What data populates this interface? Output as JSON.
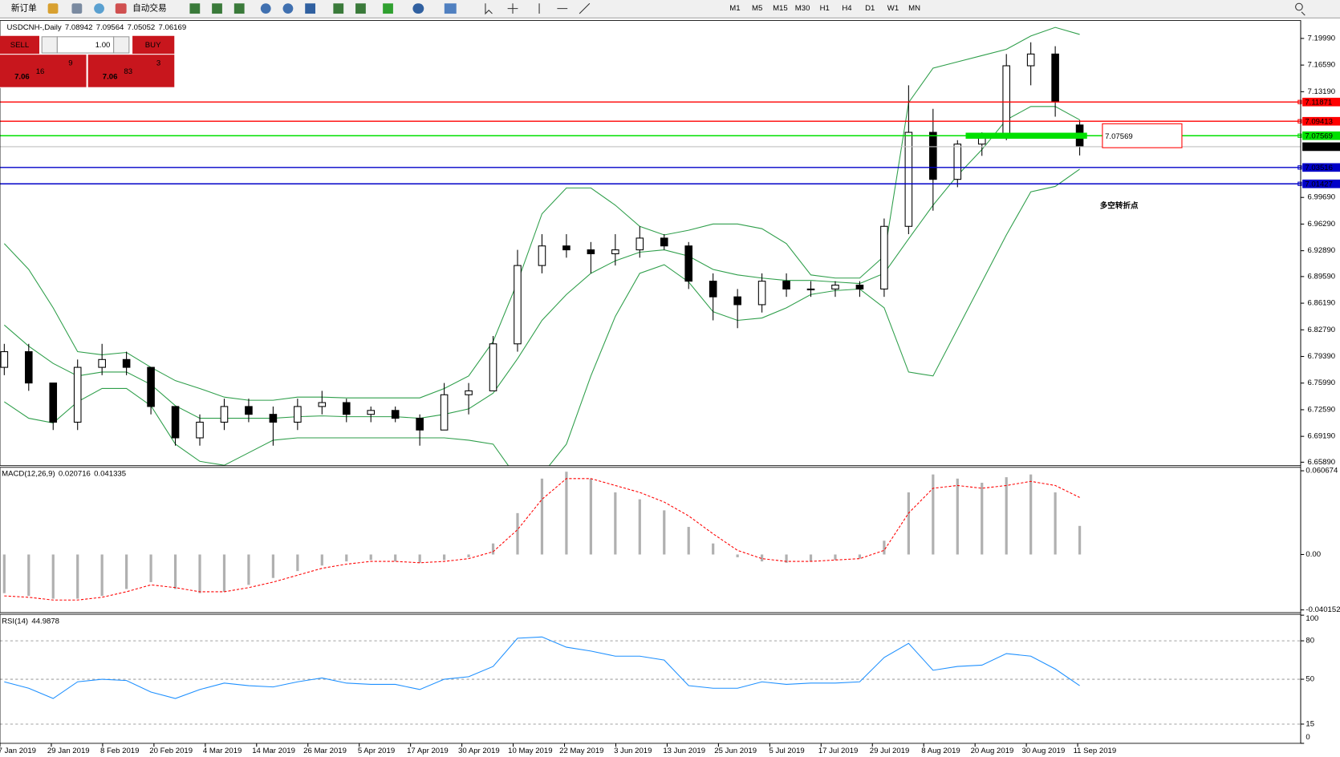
{
  "toolbar": {
    "new_order": "新订单",
    "auto_trading": "自动交易",
    "timeframes": [
      "M1",
      "M5",
      "M15",
      "M30",
      "H1",
      "H4",
      "D1",
      "W1",
      "MN"
    ]
  },
  "trade_panel": {
    "sell": "SELL",
    "buy": "BUY",
    "lots": "1.00",
    "sell_price": {
      "big": "7.06",
      "pips": "16",
      "point": "9"
    },
    "buy_price": {
      "big": "7.06",
      "pips": "83",
      "point": "3"
    }
  },
  "time_axis": [
    "7 Jan 2019",
    "29 Jan 2019",
    "8 Feb 2019",
    "20 Feb 2019",
    "4 Mar 2019",
    "14 Mar 2019",
    "26 Mar 2019",
    "5 Apr 2019",
    "17 Apr 2019",
    "30 Apr 2019",
    "10 May 2019",
    "22 May 2019",
    "3 Jun 2019",
    "13 Jun 2019",
    "25 Jun 2019",
    "5 Jul 2019",
    "17 Jul 2019",
    "29 Jul 2019",
    "8 Aug 2019",
    "20 Aug 2019",
    "30 Aug 2019",
    "11 Sep 2019"
  ],
  "chart_data": [
    {
      "type": "candlestick",
      "title": "USDCNH-,Daily",
      "open": [
        6.78,
        6.8,
        6.76,
        6.71,
        6.78,
        6.79,
        6.78,
        6.73,
        6.69,
        6.71,
        6.73,
        6.72,
        6.71,
        6.73,
        6.735,
        6.72,
        6.725,
        6.715,
        6.7,
        6.745,
        6.75,
        6.81,
        6.91,
        6.935,
        6.93,
        6.925,
        6.93,
        6.945,
        6.935,
        6.89,
        6.87,
        6.86,
        6.89,
        6.88,
        6.88,
        6.885,
        6.88,
        6.96,
        7.08,
        7.02,
        7.065,
        7.075,
        7.165,
        7.18,
        7.08942
      ],
      "high": [
        6.81,
        6.81,
        6.76,
        6.79,
        6.81,
        6.8,
        6.78,
        6.73,
        6.72,
        6.74,
        6.74,
        6.73,
        6.74,
        6.75,
        6.74,
        6.73,
        6.73,
        6.72,
        6.76,
        6.76,
        6.82,
        6.93,
        6.95,
        6.95,
        6.94,
        6.95,
        6.96,
        6.95,
        6.94,
        6.9,
        6.88,
        6.9,
        6.9,
        6.89,
        6.89,
        6.89,
        6.97,
        7.14,
        7.11,
        7.07,
        7.08,
        7.18,
        7.195,
        7.19,
        7.09564
      ],
      "low": [
        6.77,
        6.75,
        6.7,
        6.7,
        6.77,
        6.77,
        6.72,
        6.68,
        6.68,
        6.7,
        6.71,
        6.68,
        6.7,
        6.72,
        6.71,
        6.71,
        6.71,
        6.68,
        6.7,
        6.72,
        6.75,
        6.8,
        6.9,
        6.92,
        6.9,
        6.91,
        6.92,
        6.93,
        6.88,
        6.84,
        6.83,
        6.85,
        6.87,
        6.87,
        6.87,
        6.87,
        6.87,
        6.95,
        6.98,
        7.01,
        7.05,
        7.07,
        7.14,
        7.1,
        7.05052
      ],
      "close": [
        6.8,
        6.76,
        6.71,
        6.78,
        6.79,
        6.78,
        6.73,
        6.69,
        6.71,
        6.73,
        6.72,
        6.71,
        6.73,
        6.735,
        6.72,
        6.725,
        6.715,
        6.7,
        6.745,
        6.75,
        6.81,
        6.91,
        6.935,
        6.93,
        6.925,
        6.93,
        6.945,
        6.935,
        6.89,
        6.87,
        6.86,
        6.89,
        6.88,
        6.88,
        6.885,
        6.88,
        6.96,
        7.08,
        7.02,
        7.065,
        7.075,
        7.165,
        7.18,
        7.12,
        7.06169
      ],
      "up_color": "#ffffff",
      "down_color": "#000000",
      "current_color": "#000000",
      "bands": {
        "color": "#2e9e4a",
        "upper": [
          6.938,
          6.905,
          6.856,
          6.8,
          6.796,
          6.799,
          6.78,
          6.763,
          6.753,
          6.742,
          6.738,
          6.738,
          6.742,
          6.742,
          6.741,
          6.741,
          6.741,
          6.741,
          6.753,
          6.769,
          6.813,
          6.889,
          6.976,
          7.009,
          7.009,
          6.987,
          6.96,
          6.949,
          6.955,
          6.963,
          6.963,
          6.957,
          6.938,
          6.898,
          6.894,
          6.894,
          6.922,
          7.118,
          7.162,
          7.17,
          7.178,
          7.186,
          7.203,
          7.214,
          7.205
        ],
        "middle": [
          6.834,
          6.807,
          6.785,
          6.769,
          6.774,
          6.774,
          6.758,
          6.731,
          6.715,
          6.715,
          6.715,
          6.715,
          6.717,
          6.718,
          6.717,
          6.717,
          6.717,
          6.715,
          6.72,
          6.727,
          6.747,
          6.791,
          6.84,
          6.873,
          6.9,
          6.916,
          6.927,
          6.93,
          6.922,
          6.905,
          6.898,
          6.894,
          6.891,
          6.891,
          6.889,
          6.887,
          6.9,
          6.944,
          6.987,
          7.025,
          7.058,
          7.096,
          7.113,
          7.113,
          7.096
        ],
        "lower": [
          6.736,
          6.715,
          6.709,
          6.736,
          6.753,
          6.753,
          6.731,
          6.682,
          6.66,
          6.655,
          6.671,
          6.687,
          6.69,
          6.69,
          6.69,
          6.69,
          6.69,
          6.69,
          6.69,
          6.687,
          6.682,
          6.638,
          6.643,
          6.682,
          6.769,
          6.845,
          6.9,
          6.911,
          6.889,
          6.851,
          6.84,
          6.843,
          6.856,
          6.873,
          6.878,
          6.88,
          6.856,
          6.774,
          6.769,
          6.829,
          6.889,
          6.949,
          7.004,
          7.011,
          7.033
        ]
      },
      "levels": [
        {
          "value": 7.11871,
          "color": "#ff0000"
        },
        {
          "value": 7.09413,
          "color": "#ff0000"
        },
        {
          "value": 7.07569,
          "color": "#00e000"
        },
        {
          "value": 7.03516,
          "color": "#0000c8"
        },
        {
          "value": 7.01427,
          "color": "#0000c8"
        }
      ],
      "ylim": [
        6.6545,
        7.2206
      ],
      "yticks": [
        {
          "value": 7.1999,
          "label": "7.19990"
        },
        {
          "value": 7.1659,
          "label": "7.16590"
        },
        {
          "value": 7.1319,
          "label": "7.13190"
        },
        {
          "value": 6.9969,
          "label": "6.99690"
        },
        {
          "value": 6.9629,
          "label": "6.96290"
        },
        {
          "value": 6.9289,
          "label": "6.92890"
        },
        {
          "value": 6.8959,
          "label": "6.89590"
        },
        {
          "value": 6.8619,
          "label": "6.86190"
        },
        {
          "value": 6.8279,
          "label": "6.82790"
        },
        {
          "value": 6.7939,
          "label": "6.79390"
        },
        {
          "value": 6.7599,
          "label": "6.75990"
        },
        {
          "value": 6.7259,
          "label": "6.72590"
        },
        {
          "value": 6.6919,
          "label": "6.69190"
        },
        {
          "value": 6.6589,
          "label": "6.65890"
        }
      ],
      "annotation": "多空转折点",
      "annotation_color": "#22aa22",
      "callout_color": "#ff0000"
    },
    {
      "type": "macd",
      "title": "MACD(12,26,9)",
      "histogram_color": "#b0b0b0",
      "signal_color": "#ff0000",
      "histogram": [
        -0.028,
        -0.03,
        -0.032,
        -0.032,
        -0.03,
        -0.025,
        -0.02,
        -0.025,
        -0.028,
        -0.027,
        -0.022,
        -0.017,
        -0.012,
        -0.008,
        -0.005,
        -0.004,
        -0.005,
        -0.006,
        -0.004,
        -0.002,
        0.008,
        0.03,
        0.055,
        0.06,
        0.055,
        0.045,
        0.04,
        0.032,
        0.02,
        0.008,
        -0.002,
        -0.005,
        -0.006,
        -0.005,
        -0.004,
        -0.003,
        0.01,
        0.045,
        0.058,
        0.055,
        0.052,
        0.056,
        0.058,
        0.045,
        0.020716
      ],
      "signal": [
        -0.03,
        -0.031,
        -0.033,
        -0.033,
        -0.031,
        -0.027,
        -0.022,
        -0.024,
        -0.027,
        -0.027,
        -0.024,
        -0.02,
        -0.015,
        -0.01,
        -0.007,
        -0.005,
        -0.005,
        -0.006,
        -0.005,
        -0.003,
        0.002,
        0.018,
        0.04,
        0.055,
        0.055,
        0.05,
        0.045,
        0.038,
        0.028,
        0.015,
        0.003,
        -0.003,
        -0.005,
        -0.005,
        -0.004,
        -0.003,
        0.003,
        0.03,
        0.048,
        0.05,
        0.048,
        0.05,
        0.053,
        0.05,
        0.041335
      ],
      "ylim": [
        -0.04149,
        0.06191
      ],
      "yticks": [
        0.060674,
        {
          "value": 0,
          "label": "0.00"
        },
        -0.040152
      ]
    },
    {
      "type": "rsi",
      "title": "RSI(14)",
      "color": "#1e90ff",
      "values": [
        48,
        43,
        35,
        48,
        50,
        49,
        40,
        35,
        42,
        47,
        45,
        44,
        48,
        51,
        47,
        46,
        46,
        42,
        50,
        52,
        60,
        82,
        83,
        75,
        72,
        68,
        68,
        65,
        45,
        43,
        43,
        48,
        46,
        47,
        47,
        48,
        67,
        78,
        57,
        60,
        61,
        70,
        68,
        58,
        44.9878
      ],
      "ylim": [
        0,
        100
      ],
      "yticks": [
        100,
        80,
        50,
        15,
        0
      ],
      "grid": true
    }
  ]
}
